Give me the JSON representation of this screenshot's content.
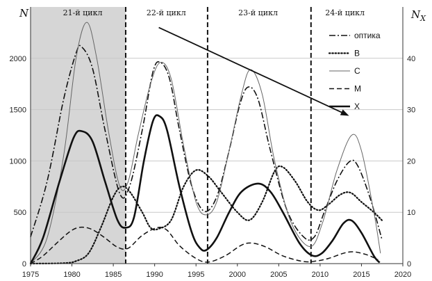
{
  "chart_data": {
    "type": "line",
    "ylabel_left": "N",
    "ylabel_right": "N",
    "ylabel_right_sub": "X",
    "xlim": [
      1975,
      2020
    ],
    "ylim_left": [
      0,
      2500
    ],
    "ylim_right": [
      0,
      50
    ],
    "x_ticks": [
      1975,
      1980,
      1985,
      1990,
      1995,
      2000,
      2005,
      2010,
      2015,
      2020
    ],
    "y_ticks_left": [
      0,
      500,
      1000,
      1500,
      2000
    ],
    "y_ticks_right": [
      0,
      10,
      20,
      30,
      40
    ],
    "shaded_region": [
      1975,
      1986.5
    ],
    "cycle_boundaries": [
      1986.5,
      1996.4,
      2008.9
    ],
    "cycles": [
      {
        "label": "21-й цикл",
        "x": 1981.3
      },
      {
        "label": "22-й цикл",
        "x": 1991.4
      },
      {
        "label": "23-й цикл",
        "x": 2002.5
      },
      {
        "label": "24-й цикл",
        "x": 2013.0
      }
    ],
    "trend_arrow": {
      "from": [
        1990.5,
        2300
      ],
      "to": [
        2013.5,
        1440
      ]
    },
    "legend_position": "top-right",
    "series": [
      {
        "name": "оптика",
        "style": "dashdot",
        "axis": "left",
        "points": [
          [
            1975,
            260
          ],
          [
            1977,
            800
          ],
          [
            1979,
            1600
          ],
          [
            1980.5,
            2050
          ],
          [
            1981.2,
            2110
          ],
          [
            1982.5,
            1900
          ],
          [
            1984,
            1300
          ],
          [
            1985.8,
            680
          ],
          [
            1987,
            760
          ],
          [
            1988.5,
            1300
          ],
          [
            1989.8,
            1870
          ],
          [
            1990.7,
            1960
          ],
          [
            1991.8,
            1800
          ],
          [
            1993,
            1300
          ],
          [
            1994.5,
            750
          ],
          [
            1996,
            510
          ],
          [
            1997.5,
            650
          ],
          [
            1999,
            1100
          ],
          [
            2000.3,
            1550
          ],
          [
            2001.3,
            1720
          ],
          [
            2002.5,
            1600
          ],
          [
            2004,
            1100
          ],
          [
            2006,
            520
          ],
          [
            2008,
            260
          ],
          [
            2009.3,
            260
          ],
          [
            2010.5,
            500
          ],
          [
            2012,
            800
          ],
          [
            2013.5,
            990
          ],
          [
            2014.5,
            960
          ],
          [
            2016,
            650
          ],
          [
            2017.5,
            230
          ]
        ]
      },
      {
        "name": "B",
        "style": "dotted",
        "axis": "right",
        "points": [
          [
            1975,
            0
          ],
          [
            1979,
            0.1
          ],
          [
            1980.5,
            0.5
          ],
          [
            1982,
            2
          ],
          [
            1983.5,
            7
          ],
          [
            1985,
            13
          ],
          [
            1986,
            15
          ],
          [
            1987,
            14
          ],
          [
            1988.5,
            10
          ],
          [
            1989.5,
            7
          ],
          [
            1990.5,
            6.8
          ],
          [
            1992,
            8.5
          ],
          [
            1993.5,
            15
          ],
          [
            1995,
            18.2
          ],
          [
            1996.5,
            17
          ],
          [
            1998,
            14
          ],
          [
            2000,
            10
          ],
          [
            2001.5,
            8.5
          ],
          [
            2003,
            12
          ],
          [
            2004.5,
            18
          ],
          [
            2005.5,
            18.8
          ],
          [
            2007,
            16
          ],
          [
            2008.5,
            12
          ],
          [
            2009.8,
            10.4
          ],
          [
            2011,
            11.5
          ],
          [
            2012.5,
            13.5
          ],
          [
            2013.7,
            13.8
          ],
          [
            2015,
            12
          ],
          [
            2016.5,
            10
          ],
          [
            2017.5,
            8.4
          ]
        ]
      },
      {
        "name": "C",
        "style": "solid-thin",
        "axis": "right",
        "points": [
          [
            1975,
            0
          ],
          [
            1977,
            5
          ],
          [
            1979,
            21
          ],
          [
            1980.5,
            40
          ],
          [
            1981.8,
            47
          ],
          [
            1983,
            40
          ],
          [
            1984.5,
            25
          ],
          [
            1985.8,
            15
          ],
          [
            1986.8,
            16
          ],
          [
            1988,
            25
          ],
          [
            1989.5,
            35
          ],
          [
            1990.7,
            39.2
          ],
          [
            1992,
            36
          ],
          [
            1993.5,
            23
          ],
          [
            1995,
            12
          ],
          [
            1996.2,
            9.5
          ],
          [
            1997.5,
            12
          ],
          [
            1999,
            22
          ],
          [
            2000.5,
            33
          ],
          [
            2001.6,
            37.8
          ],
          [
            2003,
            33
          ],
          [
            2004.5,
            20
          ],
          [
            2006.5,
            8
          ],
          [
            2008.8,
            3.3
          ],
          [
            2010.3,
            8
          ],
          [
            2012,
            18
          ],
          [
            2013.8,
            25
          ],
          [
            2015,
            22
          ],
          [
            2016.5,
            10
          ],
          [
            2017.3,
            2
          ]
        ]
      },
      {
        "name": "M",
        "style": "dashed",
        "axis": "right",
        "points": [
          [
            1975,
            0
          ],
          [
            1976.5,
            1.5
          ],
          [
            1978.5,
            4.5
          ],
          [
            1980,
            6.5
          ],
          [
            1981.2,
            7.1
          ],
          [
            1982.5,
            6.6
          ],
          [
            1984,
            5
          ],
          [
            1985.5,
            3.2
          ],
          [
            1986.8,
            3
          ],
          [
            1988.5,
            5.5
          ],
          [
            1990.3,
            7
          ],
          [
            1991.5,
            6.5
          ],
          [
            1993,
            3.5
          ],
          [
            1995,
            1
          ],
          [
            1996.5,
            0.3
          ],
          [
            1998.5,
            1.5
          ],
          [
            2000.5,
            3.6
          ],
          [
            2001.8,
            4
          ],
          [
            2003.5,
            3.2
          ],
          [
            2005.5,
            1.5
          ],
          [
            2008,
            0.4
          ],
          [
            2009.5,
            0.5
          ],
          [
            2011,
            1
          ],
          [
            2012.8,
            2
          ],
          [
            2014,
            2.3
          ],
          [
            2015.5,
            1.8
          ],
          [
            2017,
            0.8
          ]
        ]
      },
      {
        "name": "X",
        "style": "solid-thick",
        "axis": "right",
        "points": [
          [
            1975,
            0
          ],
          [
            1976.5,
            5
          ],
          [
            1978.5,
            16
          ],
          [
            1980.2,
            24.5
          ],
          [
            1981.2,
            25.8
          ],
          [
            1982.5,
            23.8
          ],
          [
            1984,
            16
          ],
          [
            1985.5,
            8.5
          ],
          [
            1986.5,
            7
          ],
          [
            1987.5,
            9
          ],
          [
            1988.7,
            20
          ],
          [
            1989.8,
            27.8
          ],
          [
            1990.6,
            28.7
          ],
          [
            1991.5,
            26
          ],
          [
            1993,
            15
          ],
          [
            1994.5,
            6
          ],
          [
            1995.5,
            3
          ],
          [
            1996.3,
            2.7
          ],
          [
            1997.5,
            5
          ],
          [
            1999,
            10
          ],
          [
            2000.5,
            14
          ],
          [
            2002.5,
            15.6
          ],
          [
            2004,
            14
          ],
          [
            2005.5,
            10
          ],
          [
            2007.5,
            4
          ],
          [
            2009,
            1.6
          ],
          [
            2010.2,
            2
          ],
          [
            2011.5,
            4.5
          ],
          [
            2012.8,
            7.8
          ],
          [
            2013.8,
            8.4
          ],
          [
            2015,
            6
          ],
          [
            2016.5,
            1.5
          ],
          [
            2017.2,
            0.2
          ]
        ]
      }
    ]
  }
}
